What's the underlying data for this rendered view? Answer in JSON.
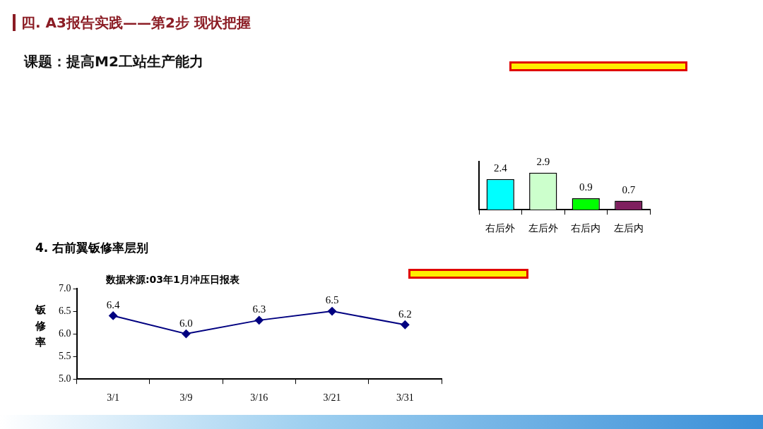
{
  "chart_data": [
    {
      "type": "other",
      "title": "四. A3报告实践——第2步 现状把握",
      "subtitle": "课题：提高M2工站生产能力"
    },
    {
      "type": "bar",
      "categories": [
        "右后外",
        "左后外",
        "右后内",
        "左后内"
      ],
      "values": [
        2.4,
        2.9,
        0.9,
        0.7
      ],
      "colors": [
        "#00ffff",
        "#ccffcc",
        "#00ff00",
        "#7f1f5f"
      ],
      "data_labels": true,
      "grid": false,
      "legend": false
    },
    {
      "type": "line",
      "title": "4. 右前翼钣修率层别",
      "annotations": [
        "数据来源:03年1月冲压日报表"
      ],
      "ylabel": "钣修率",
      "categories": [
        "3/1",
        "3/9",
        "3/16",
        "3/21",
        "3/31"
      ],
      "series": [
        {
          "color": "#000080",
          "values": [
            6.4,
            6.0,
            6.3,
            6.5,
            6.2
          ]
        }
      ],
      "value_labels": [
        "6.4",
        "6.0",
        "6.3",
        "6.5",
        "6.2"
      ],
      "ylim": [
        5,
        7
      ],
      "yticks": [
        {
          "value": 5,
          "label": "5.0"
        },
        {
          "value": 5.5,
          "label": "5.5"
        },
        {
          "value": 6,
          "label": "6.0"
        },
        {
          "value": 6.5,
          "label": "6.5"
        },
        {
          "value": 7,
          "label": "7.0"
        }
      ],
      "marker": "diamond",
      "line_style": "solid",
      "grid": false,
      "legend": false
    }
  ]
}
